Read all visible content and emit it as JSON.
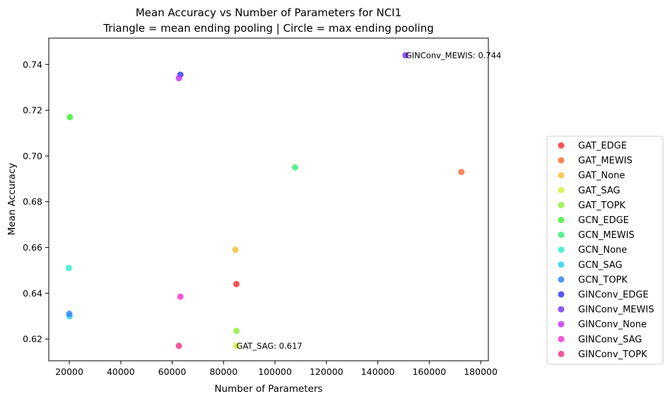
{
  "chart_data": {
    "type": "scatter",
    "title_line1": "Mean Accuracy vs Number of Parameters for NCI1",
    "title_line2": "Triangle = mean ending pooling | Circle = max ending pooling",
    "xlabel": "Number of Parameters",
    "ylabel": "Mean Accuracy",
    "xlim": [
      12000,
      183000
    ],
    "ylim": [
      0.6105,
      0.7515
    ],
    "xticks": [
      20000,
      40000,
      60000,
      80000,
      100000,
      120000,
      140000,
      160000,
      180000
    ],
    "xtick_labels": [
      "20000",
      "40000",
      "60000",
      "80000",
      "100000",
      "120000",
      "140000",
      "160000",
      "180000"
    ],
    "yticks": [
      0.62,
      0.64,
      0.66,
      0.68,
      0.7,
      0.72,
      0.74
    ],
    "ytick_labels": [
      "0.62",
      "0.64",
      "0.66",
      "0.68",
      "0.70",
      "0.72",
      "0.74"
    ],
    "grid": false,
    "legend_placement": "right, outside plot",
    "series": [
      {
        "name": "GAT_EDGE",
        "color": "#f5353d",
        "points": [
          [
            85000,
            0.644
          ]
        ]
      },
      {
        "name": "GAT_MEWIS",
        "color": "#f7733a",
        "points": [
          [
            172500,
            0.693
          ]
        ]
      },
      {
        "name": "GAT_None",
        "color": "#f8c13c",
        "points": [
          [
            84600,
            0.659
          ]
        ]
      },
      {
        "name": "GAT_SAG",
        "color": "#d6f03a",
        "points": [
          [
            85000,
            0.617
          ]
        ]
      },
      {
        "name": "GAT_TOPK",
        "color": "#8ef03a",
        "points": [
          [
            85000,
            0.6235
          ]
        ]
      },
      {
        "name": "GCN_EDGE",
        "color": "#3ef03a",
        "points": [
          [
            20200,
            0.717
          ]
        ]
      },
      {
        "name": "GCN_MEWIS",
        "color": "#39f07c",
        "points": [
          [
            107800,
            0.695
          ]
        ]
      },
      {
        "name": "GCN_None",
        "color": "#33f0c7",
        "points": [
          [
            19800,
            0.651
          ]
        ]
      },
      {
        "name": "GCN_SAG",
        "color": "#33d0f4",
        "points": [
          [
            20100,
            0.63
          ]
        ]
      },
      {
        "name": "GCN_TOPK",
        "color": "#3586f4",
        "points": [
          [
            20000,
            0.631
          ]
        ]
      },
      {
        "name": "GINConv_EDGE",
        "color": "#3a3af4",
        "points": [
          [
            63200,
            0.7355
          ]
        ]
      },
      {
        "name": "GINConv_MEWIS",
        "color": "#7a3af4",
        "points": [
          [
            150800,
            0.744
          ]
        ]
      },
      {
        "name": "GINConv_None",
        "color": "#c53af4",
        "points": [
          [
            62600,
            0.734
          ]
        ]
      },
      {
        "name": "GINConv_SAG",
        "color": "#f43ad8",
        "points": [
          [
            63200,
            0.6385
          ]
        ]
      },
      {
        "name": "GINConv_TOPK",
        "color": "#f43a8a",
        "points": [
          [
            62600,
            0.617
          ]
        ]
      }
    ],
    "annotations": [
      {
        "text": "GINConv_MEWIS: 0.744",
        "x": 150800,
        "y": 0.744
      },
      {
        "text": "GAT_SAG: 0.617",
        "x": 85000,
        "y": 0.617
      }
    ]
  }
}
